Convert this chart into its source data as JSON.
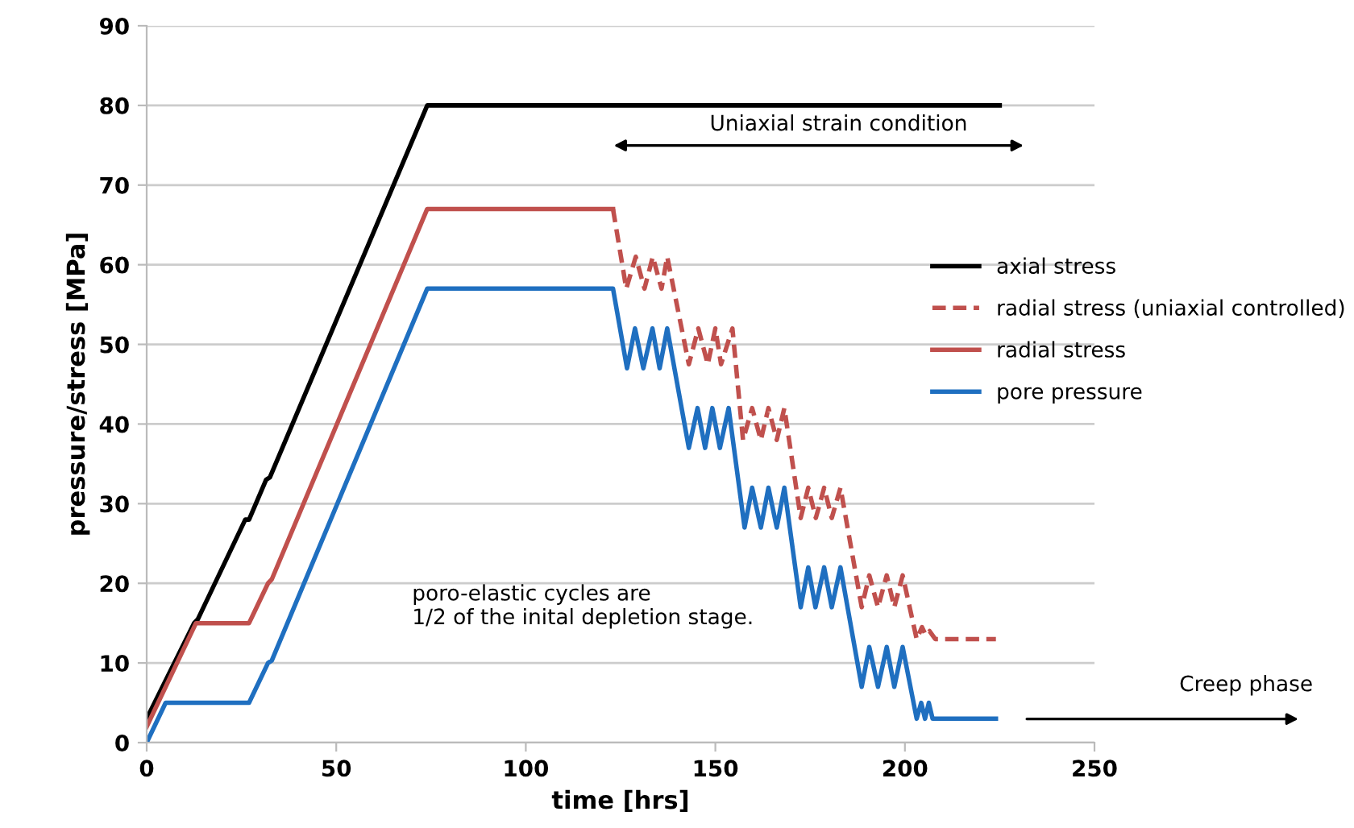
{
  "chart_data": {
    "type": "line",
    "xlabel": "time [hrs]",
    "ylabel": "pressure/stress [MPa]",
    "xlim": [
      0,
      250
    ],
    "xticks": [
      0,
      50,
      100,
      150,
      200,
      250
    ],
    "ylim": [
      0,
      90
    ],
    "yticks": [
      0,
      10,
      20,
      30,
      40,
      50,
      60,
      70,
      80,
      90
    ],
    "grid": "y",
    "legend": "right",
    "marker": "none",
    "series": [
      {
        "name": "axial stress",
        "color": "#000000",
        "line_style": "solid",
        "x": [
          0,
          12.5,
          13.5,
          26,
          27,
          31.5,
          32.5,
          74,
          225
        ],
        "values": [
          3,
          15,
          15.5,
          28,
          28,
          33,
          33.3,
          80,
          80
        ]
      },
      {
        "name": "radial stress (uniaxial controlled)",
        "color": "#c0504d",
        "line_style": "dashed",
        "x": [
          123,
          126.5,
          129,
          131.3,
          133.5,
          135.8,
          137.3,
          143,
          145.5,
          148,
          150,
          151.5,
          154.5,
          157.3,
          159.7,
          162,
          164,
          166.2,
          168.2,
          172.5,
          174.5,
          176.5,
          178.7,
          180.7,
          183,
          188.6,
          190.6,
          192.9,
          195.2,
          197.2,
          199.4,
          203.1,
          204.5,
          205.5,
          206.5,
          208,
          224
        ],
        "values": [
          67,
          57,
          61,
          57,
          61,
          57,
          61,
          47.5,
          52,
          47.5,
          52,
          47.5,
          52,
          38,
          42,
          38,
          42,
          38,
          42,
          28.2,
          32,
          28.2,
          32,
          28.2,
          32,
          17,
          21,
          17,
          21,
          17,
          21,
          13,
          14.5,
          13.5,
          14,
          13,
          13
        ]
      },
      {
        "name": "radial stress",
        "color": "#c0504d",
        "line_style": "solid",
        "x": [
          0,
          13,
          27,
          32,
          33,
          74,
          123
        ],
        "values": [
          2,
          15,
          15,
          20,
          20.5,
          67,
          67
        ]
      },
      {
        "name": "pore pressure",
        "color": "#1f6fc0",
        "line_style": "solid",
        "x": [
          0,
          5,
          27,
          32,
          33,
          74,
          123,
          126.7,
          128.8,
          131,
          133.4,
          135.3,
          137.3,
          143,
          145.3,
          147.3,
          149.2,
          151.2,
          153.5,
          157.7,
          159.7,
          162,
          164,
          166.2,
          168.2,
          172.5,
          174.5,
          176.4,
          178.7,
          180.7,
          183,
          188.6,
          190.6,
          192.9,
          195.2,
          197.2,
          199.4,
          203.1,
          204.3,
          205.3,
          206.3,
          207.3,
          208.5,
          224
        ],
        "values": [
          0,
          5,
          5,
          10,
          10.3,
          57,
          57,
          47,
          52,
          47,
          52,
          47,
          52,
          37,
          42,
          37,
          42,
          37,
          42,
          27,
          32,
          27,
          32,
          27,
          32,
          17,
          22,
          17,
          22,
          17,
          22,
          7,
          12,
          7,
          12,
          7,
          12,
          3,
          5,
          3,
          5,
          3,
          3,
          3
        ]
      }
    ],
    "annotations": [
      "Uniaxial strain condition",
      "poro-elastic cycles are\n1/2 of the inital depletion stage.",
      "Creep phase"
    ]
  }
}
